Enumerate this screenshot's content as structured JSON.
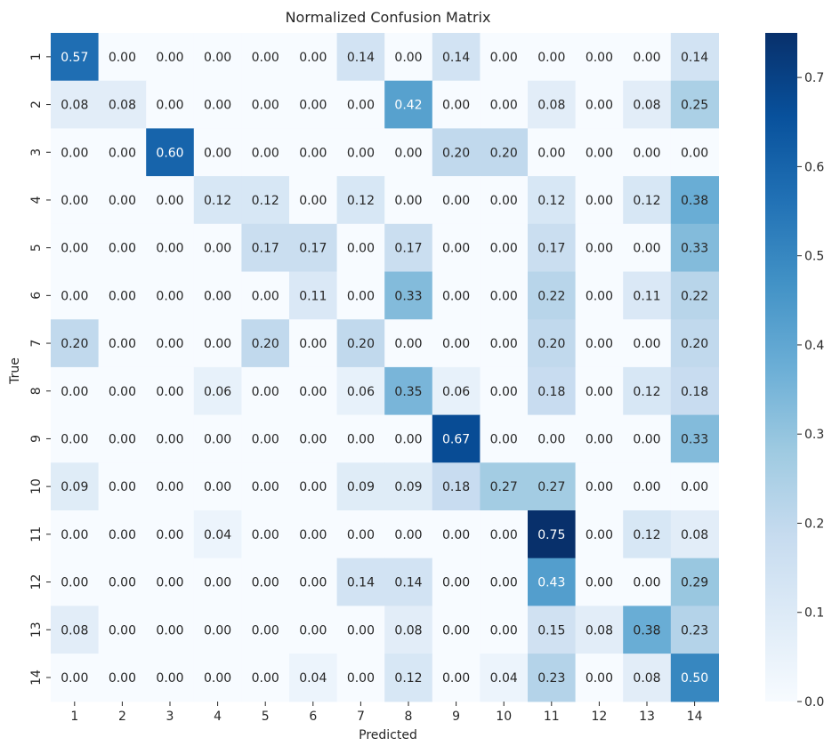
{
  "chart_data": {
    "type": "heatmap",
    "title": "Normalized Confusion Matrix",
    "xlabel": "Predicted",
    "ylabel": "True",
    "x_categories": [
      "1",
      "2",
      "3",
      "4",
      "5",
      "6",
      "7",
      "8",
      "9",
      "10",
      "11",
      "12",
      "13",
      "14"
    ],
    "y_categories": [
      "1",
      "2",
      "3",
      "4",
      "5",
      "6",
      "7",
      "8",
      "9",
      "10",
      "11",
      "12",
      "13",
      "14"
    ],
    "values": [
      [
        0.57,
        0.0,
        0.0,
        0.0,
        0.0,
        0.0,
        0.14,
        0.0,
        0.14,
        0.0,
        0.0,
        0.0,
        0.0,
        0.14
      ],
      [
        0.08,
        0.08,
        0.0,
        0.0,
        0.0,
        0.0,
        0.0,
        0.42,
        0.0,
        0.0,
        0.08,
        0.0,
        0.08,
        0.25
      ],
      [
        0.0,
        0.0,
        0.6,
        0.0,
        0.0,
        0.0,
        0.0,
        0.0,
        0.2,
        0.2,
        0.0,
        0.0,
        0.0,
        0.0
      ],
      [
        0.0,
        0.0,
        0.0,
        0.12,
        0.12,
        0.0,
        0.12,
        0.0,
        0.0,
        0.0,
        0.12,
        0.0,
        0.12,
        0.38
      ],
      [
        0.0,
        0.0,
        0.0,
        0.0,
        0.17,
        0.17,
        0.0,
        0.17,
        0.0,
        0.0,
        0.17,
        0.0,
        0.0,
        0.33
      ],
      [
        0.0,
        0.0,
        0.0,
        0.0,
        0.0,
        0.11,
        0.0,
        0.33,
        0.0,
        0.0,
        0.22,
        0.0,
        0.11,
        0.22
      ],
      [
        0.2,
        0.0,
        0.0,
        0.0,
        0.2,
        0.0,
        0.2,
        0.0,
        0.0,
        0.0,
        0.2,
        0.0,
        0.0,
        0.2
      ],
      [
        0.0,
        0.0,
        0.0,
        0.06,
        0.0,
        0.0,
        0.06,
        0.35,
        0.06,
        0.0,
        0.18,
        0.0,
        0.12,
        0.18
      ],
      [
        0.0,
        0.0,
        0.0,
        0.0,
        0.0,
        0.0,
        0.0,
        0.0,
        0.67,
        0.0,
        0.0,
        0.0,
        0.0,
        0.33
      ],
      [
        0.09,
        0.0,
        0.0,
        0.0,
        0.0,
        0.0,
        0.09,
        0.09,
        0.18,
        0.27,
        0.27,
        0.0,
        0.0,
        0.0
      ],
      [
        0.0,
        0.0,
        0.0,
        0.04,
        0.0,
        0.0,
        0.0,
        0.0,
        0.0,
        0.0,
        0.75,
        0.0,
        0.12,
        0.08
      ],
      [
        0.0,
        0.0,
        0.0,
        0.0,
        0.0,
        0.0,
        0.14,
        0.14,
        0.0,
        0.0,
        0.43,
        0.0,
        0.0,
        0.29
      ],
      [
        0.08,
        0.0,
        0.0,
        0.0,
        0.0,
        0.0,
        0.0,
        0.08,
        0.0,
        0.0,
        0.15,
        0.08,
        0.38,
        0.23
      ],
      [
        0.0,
        0.0,
        0.0,
        0.0,
        0.0,
        0.04,
        0.0,
        0.12,
        0.0,
        0.04,
        0.23,
        0.0,
        0.08,
        0.5
      ]
    ],
    "value_format": "0.00",
    "colormap": "Blues",
    "color_range": [
      0.0,
      0.75
    ],
    "colorbar_ticks": [
      "0.0",
      "0.1",
      "0.2",
      "0.3",
      "0.4",
      "0.5",
      "0.6",
      "0.7"
    ],
    "grid": false,
    "legend": "colorbar-right"
  }
}
